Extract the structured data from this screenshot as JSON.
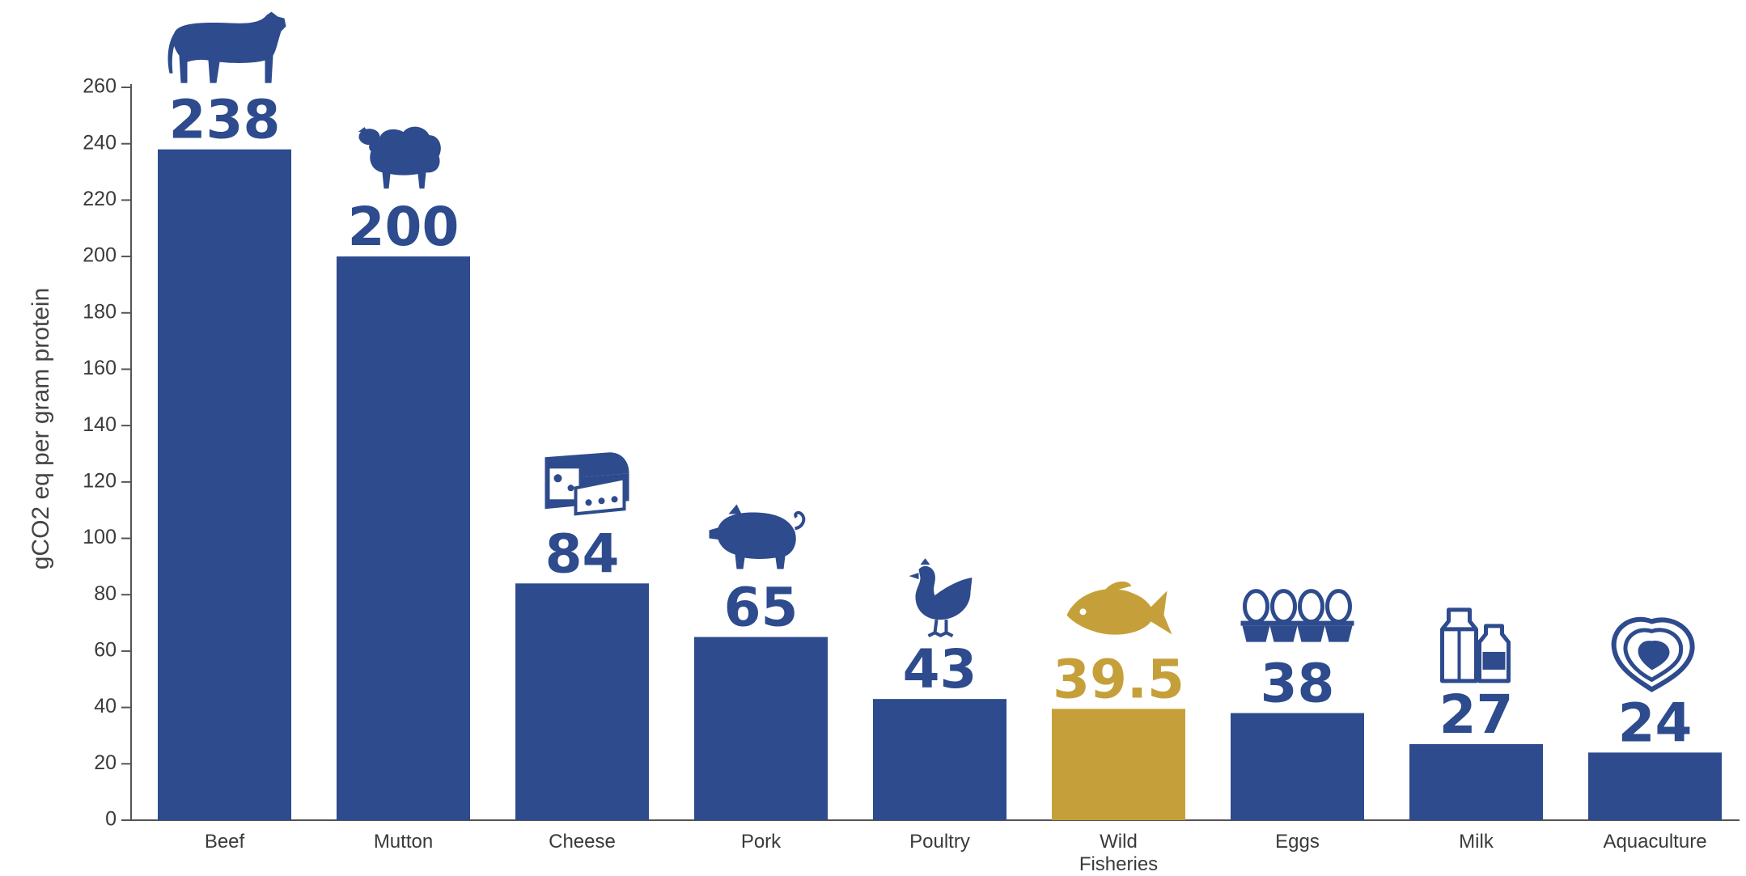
{
  "chart_data": {
    "type": "bar",
    "title": "",
    "ylabel": "gCO2 eq per gram protein",
    "xlabel": "",
    "ylim": [
      0,
      260
    ],
    "yticks": [
      0,
      20,
      40,
      60,
      80,
      100,
      120,
      140,
      160,
      180,
      200,
      220,
      240,
      260
    ],
    "grid": false,
    "legend": "none",
    "colors": {
      "bar": "#2d4b8d",
      "highlight": "#c5a03a",
      "axis": "#555555"
    },
    "categories": [
      {
        "label": "Beef",
        "label_lines": [
          "Beef"
        ],
        "icon": "cow-icon",
        "highlight": false
      },
      {
        "label": "Mutton",
        "label_lines": [
          "Mutton"
        ],
        "icon": "sheep-icon",
        "highlight": false
      },
      {
        "label": "Cheese",
        "label_lines": [
          "Cheese"
        ],
        "icon": "cheese-icon",
        "highlight": false
      },
      {
        "label": "Pork",
        "label_lines": [
          "Pork"
        ],
        "icon": "pig-icon",
        "highlight": false
      },
      {
        "label": "Poultry",
        "label_lines": [
          "Poultry"
        ],
        "icon": "chicken-icon",
        "highlight": false
      },
      {
        "label": "Wild Fisheries",
        "label_lines": [
          "Wild",
          "Fisheries"
        ],
        "icon": "fish-icon",
        "highlight": true
      },
      {
        "label": "Eggs",
        "label_lines": [
          "Eggs"
        ],
        "icon": "egg-carton-icon",
        "highlight": false
      },
      {
        "label": "Milk",
        "label_lines": [
          "Milk"
        ],
        "icon": "milk-carton-icon",
        "highlight": false
      },
      {
        "label": "Aquaculture",
        "label_lines": [
          "Aquaculture"
        ],
        "icon": "oyster-icon",
        "highlight": false
      }
    ],
    "values": [
      238,
      200,
      84,
      65,
      43,
      39.5,
      38,
      27,
      24
    ],
    "value_labels": [
      "238",
      "200",
      "84",
      "65",
      "43",
      "39.5",
      "38",
      "27",
      "24"
    ]
  }
}
